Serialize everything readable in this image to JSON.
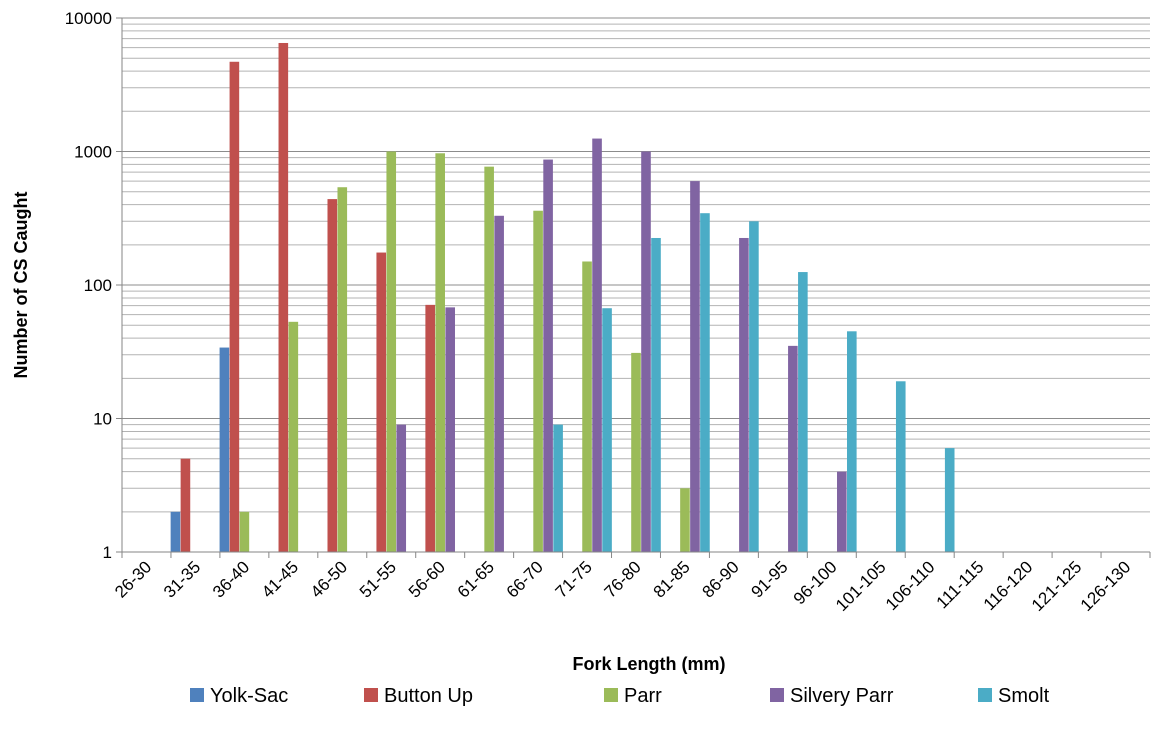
{
  "chart_data": {
    "type": "bar",
    "title": "",
    "xlabel": "Fork Length (mm)",
    "ylabel": "Number of CS Caught",
    "yscale": "log",
    "ylim": [
      1,
      10000
    ],
    "y_ticks": [
      "1",
      "10",
      "100",
      "1000",
      "10000"
    ],
    "grid": "horizontal, major and minor",
    "legend_position": "bottom",
    "categories": [
      "26-30",
      "31-35",
      "36-40",
      "41-45",
      "46-50",
      "51-55",
      "56-60",
      "61-65",
      "66-70",
      "71-75",
      "76-80",
      "81-85",
      "86-90",
      "91-95",
      "96-100",
      "101-105",
      "106-110",
      "111-115",
      "116-120",
      "121-125",
      "126-130"
    ],
    "series": [
      {
        "name": "Yolk-Sac",
        "color": "#4F81BD",
        "values": [
          null,
          2,
          34,
          null,
          null,
          null,
          null,
          null,
          null,
          null,
          null,
          null,
          null,
          null,
          null,
          null,
          null,
          null,
          null,
          null,
          null
        ]
      },
      {
        "name": "Button Up",
        "color": "#C0504D",
        "values": [
          null,
          5,
          4700,
          6500,
          440,
          175,
          71,
          null,
          null,
          null,
          null,
          null,
          null,
          null,
          null,
          null,
          null,
          null,
          null,
          null,
          null
        ]
      },
      {
        "name": "Parr",
        "color": "#9BBB59",
        "values": [
          null,
          null,
          2,
          53,
          540,
          1000,
          970,
          770,
          360,
          150,
          31,
          3,
          null,
          null,
          null,
          null,
          null,
          null,
          null,
          null,
          null
        ]
      },
      {
        "name": "Silvery Parr",
        "color": "#8064A2",
        "values": [
          null,
          null,
          null,
          null,
          null,
          9,
          68,
          330,
          870,
          1250,
          1000,
          600,
          225,
          35,
          4,
          null,
          null,
          null,
          null,
          null,
          null
        ]
      },
      {
        "name": "Smolt",
        "color": "#4BACC6",
        "values": [
          null,
          null,
          null,
          null,
          null,
          null,
          null,
          null,
          9,
          67,
          225,
          345,
          300,
          125,
          45,
          19,
          6,
          null,
          null,
          null,
          null
        ]
      }
    ]
  }
}
